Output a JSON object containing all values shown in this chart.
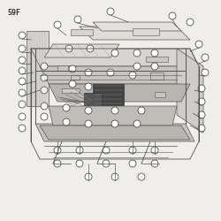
{
  "title": "59F",
  "bg_color": "#f0eeea",
  "line_color": "#555555",
  "dark_color": "#333333",
  "figsize": [
    2.5,
    2.5
  ],
  "dpi": 100
}
